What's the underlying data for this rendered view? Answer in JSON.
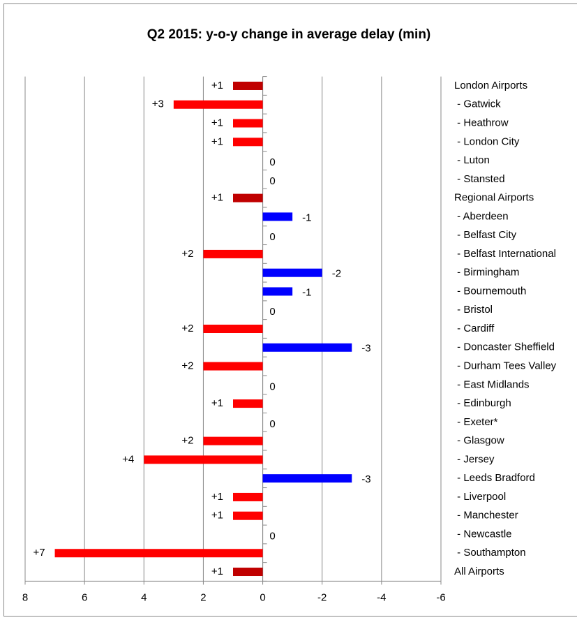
{
  "chart_data": {
    "type": "hbar",
    "title": "Q2 2015: y-o-y change in average delay (min)",
    "categories": [
      "London Airports",
      " - Gatwick",
      " - Heathrow",
      " - London City",
      " - Luton",
      " - Stansted",
      "Regional Airports",
      " - Aberdeen",
      " - Belfast City",
      " - Belfast International",
      " - Birmingham",
      " - Bournemouth",
      " - Bristol",
      " - Cardiff",
      " - Doncaster Sheffield",
      " - Durham Tees Valley",
      " - East Midlands",
      " - Edinburgh",
      " - Exeter*",
      " - Glasgow",
      " - Jersey",
      " - Leeds Bradford",
      " - Liverpool",
      " - Manchester",
      " - Newcastle",
      " - Southampton",
      "All Airports"
    ],
    "values": [
      1,
      3,
      1,
      1,
      0,
      0,
      1,
      -1,
      0,
      2,
      -2,
      -1,
      0,
      2,
      -3,
      2,
      0,
      1,
      0,
      2,
      4,
      -3,
      1,
      1,
      0,
      7,
      1
    ],
    "value_labels": [
      "+1",
      "+3",
      "+1",
      "+1",
      "0",
      "0",
      "+1",
      "-1",
      "0",
      "+2",
      "-2",
      "-1",
      "0",
      "+2",
      "-3",
      "+2",
      "0",
      "+1",
      "0",
      "+2",
      "+4",
      "-3",
      "+1",
      "+1",
      "0",
      "+7",
      "+1"
    ],
    "colors": [
      "#c00000",
      "#ff0000",
      "#ff0000",
      "#ff0000",
      "#ff0000",
      "#ff0000",
      "#c00000",
      "#0000ff",
      "#ff0000",
      "#ff0000",
      "#0000ff",
      "#0000ff",
      "#ff0000",
      "#ff0000",
      "#0000ff",
      "#ff0000",
      "#ff0000",
      "#ff0000",
      "#ff0000",
      "#ff0000",
      "#ff0000",
      "#0000ff",
      "#ff0000",
      "#ff0000",
      "#ff0000",
      "#ff0000",
      "#c00000"
    ],
    "xlim": [
      8,
      -6
    ],
    "xticks": [
      8,
      6,
      4,
      2,
      0,
      -2,
      -4,
      -6
    ],
    "grid": true
  }
}
